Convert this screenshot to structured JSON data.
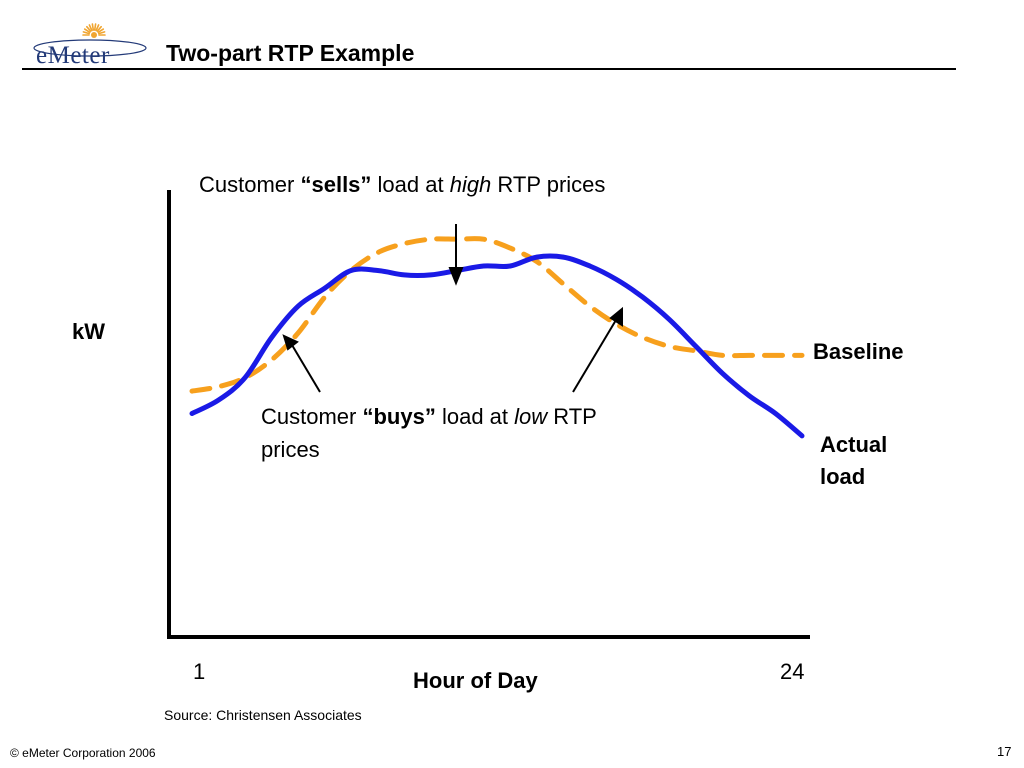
{
  "header": {
    "logo_text": "eMeter",
    "title": "Two-part RTP Example"
  },
  "colors": {
    "actual_load": "#1a1ae6",
    "baseline": "#f7a01d",
    "logo_blue": "#233a78",
    "logo_sun": "#f0a531"
  },
  "annotations": {
    "sells": {
      "prefix": "Customer ",
      "emph": "“sells”",
      "mid": " load at ",
      "ital": "high",
      "suffix": " RTP prices"
    },
    "buys": {
      "prefix": "Customer ",
      "emph": "“buys”",
      "mid": " load at ",
      "ital": "low",
      "suffix": " RTP",
      "line2": "prices"
    }
  },
  "chart_data": {
    "type": "line",
    "title": "",
    "xlabel": "Hour of Day",
    "ylabel": "kW",
    "x_tick_labels": [
      "1",
      "24"
    ],
    "xlim": [
      1,
      24
    ],
    "ylim": [
      0,
      100
    ],
    "grid": false,
    "series": [
      {
        "name": "Baseline",
        "style": "dashed",
        "color": "#f7a01d",
        "x": [
          1,
          2,
          3,
          4,
          5,
          6,
          7,
          8,
          9,
          10,
          11,
          12,
          13,
          14,
          15,
          16,
          17,
          18,
          19,
          20,
          21,
          22,
          23,
          24
        ],
        "y": [
          55,
          56,
          58,
          62,
          68,
          76,
          82,
          86,
          88,
          89,
          89,
          89,
          87,
          84,
          79,
          74,
          70,
          67,
          65,
          64,
          63,
          63,
          63,
          63
        ]
      },
      {
        "name": "Actual load",
        "style": "solid",
        "color": "#1a1ae6",
        "x": [
          1,
          2,
          3,
          4,
          5,
          6,
          7,
          8,
          9,
          10,
          11,
          12,
          13,
          14,
          15,
          16,
          17,
          18,
          19,
          20,
          21,
          22,
          23,
          24
        ],
        "y": [
          50,
          53,
          58,
          67,
          74,
          78,
          82,
          82,
          81,
          81,
          82,
          83,
          83,
          85,
          85,
          83,
          80,
          76,
          71,
          65,
          59,
          54,
          50,
          45
        ]
      }
    ]
  },
  "footer": {
    "source": "Source: Christensen Associates",
    "copyright": "© eMeter Corporation 2006",
    "page_number": "17"
  }
}
